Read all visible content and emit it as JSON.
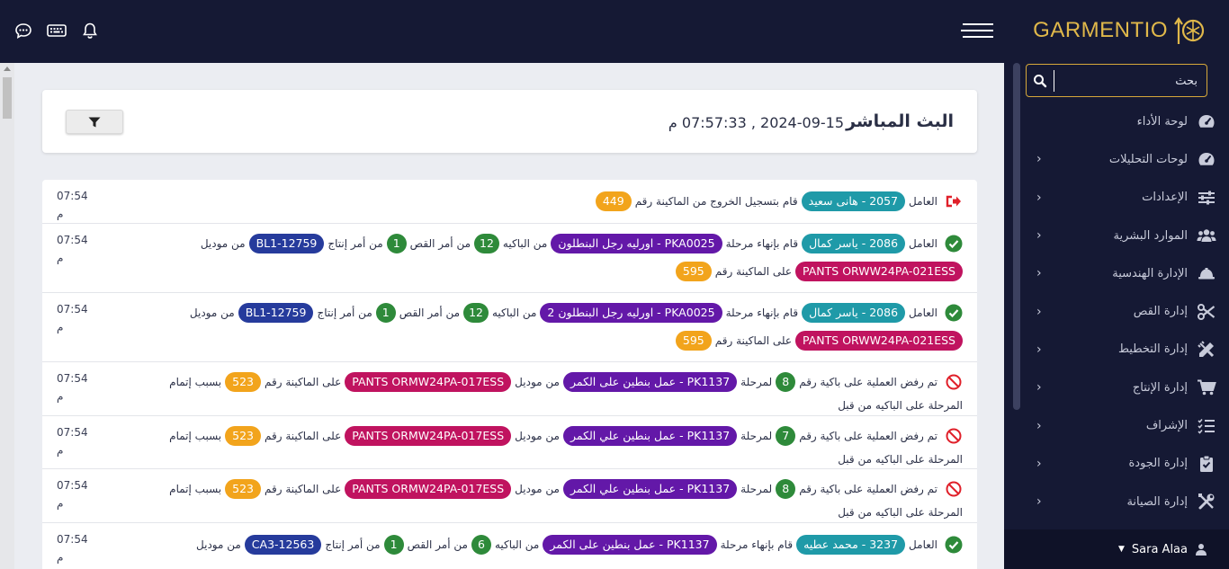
{
  "app": {
    "logo_text": "GARMENTIO"
  },
  "sidebar": {
    "search_placeholder": "بحث",
    "items": [
      {
        "label": "لوحة الأداء",
        "icon": "speedometer-icon",
        "has_children": false
      },
      {
        "label": "لوحات التحليلات",
        "icon": "speedometer-icon",
        "has_children": true
      },
      {
        "label": "الإعدادات",
        "icon": "sliders-icon",
        "has_children": true
      },
      {
        "label": "الموارد البشرية",
        "icon": "users-icon",
        "has_children": true
      },
      {
        "label": "الإدارة الهندسية",
        "icon": "hard-hat-icon",
        "has_children": true
      },
      {
        "label": "إدارة القص",
        "icon": "scissors-icon",
        "has_children": true
      },
      {
        "label": "إدارة التخطيط",
        "icon": "pencil-ruler-icon",
        "has_children": true
      },
      {
        "label": "إدارة الإنتاج",
        "icon": "cart-icon",
        "has_children": true
      },
      {
        "label": "الإشراف",
        "icon": "checklist-icon",
        "has_children": true
      },
      {
        "label": "إدارة الجودة",
        "icon": "clipboard-check-icon",
        "has_children": true
      },
      {
        "label": "إدارة الصيانة",
        "icon": "tools-icon",
        "has_children": true
      }
    ],
    "chevron": "›"
  },
  "user": {
    "name": "Sara Alaa"
  },
  "header": {
    "title": "البث المباشر",
    "datetime": "2024-09-15 , 07:57:33 م"
  },
  "feed": {
    "rows": [
      {
        "ts1": "07:54",
        "ts2": "م",
        "status": "logout",
        "lines": [
          [
            {
              "t": "text",
              "v": "العامل"
            },
            {
              "t": "pill",
              "c": "teal",
              "v": "2057 - هانى سعيد"
            },
            {
              "t": "text",
              "v": "قام بتسجيل الخروج من الماكينة رقم"
            },
            {
              "t": "pill",
              "c": "orange",
              "v": "449"
            }
          ]
        ]
      },
      {
        "ts1": "07:54",
        "ts2": "م",
        "status": "ok",
        "lines": [
          [
            {
              "t": "text",
              "v": "العامل"
            },
            {
              "t": "pill",
              "c": "teal",
              "v": "2086 - ياسر كمال"
            },
            {
              "t": "text",
              "v": "قام بإنهاء مرحلة"
            },
            {
              "t": "pill",
              "c": "purple",
              "v": "PKA0025 - اورليه رجل البنطلون"
            },
            {
              "t": "text",
              "v": "من الباكيه"
            },
            {
              "t": "pill",
              "c": "green",
              "v": "12"
            },
            {
              "t": "text",
              "v": "من أمر القص"
            },
            {
              "t": "pill",
              "c": "green",
              "v": "1"
            },
            {
              "t": "text",
              "v": "من أمر إنتاج"
            },
            {
              "t": "pill",
              "c": "navy",
              "v": "BL1-12759"
            },
            {
              "t": "text",
              "v": "من موديل"
            }
          ],
          [
            {
              "t": "pill",
              "c": "crimson",
              "v": "PANTS ORWW24PA-021ESS"
            },
            {
              "t": "text",
              "v": "على الماكينة رقم"
            },
            {
              "t": "pill",
              "c": "orange",
              "v": "595"
            }
          ]
        ]
      },
      {
        "ts1": "07:54",
        "ts2": "م",
        "status": "ok",
        "lines": [
          [
            {
              "t": "text",
              "v": "العامل"
            },
            {
              "t": "pill",
              "c": "teal",
              "v": "2086 - ياسر كمال"
            },
            {
              "t": "text",
              "v": "قام بإنهاء مرحلة"
            },
            {
              "t": "pill",
              "c": "purple",
              "v": "PKA0025 - اورليه رجل البنطلون 2"
            },
            {
              "t": "text",
              "v": "من الباكيه"
            },
            {
              "t": "pill",
              "c": "green",
              "v": "12"
            },
            {
              "t": "text",
              "v": "من أمر القص"
            },
            {
              "t": "pill",
              "c": "green",
              "v": "1"
            },
            {
              "t": "text",
              "v": "من أمر إنتاج"
            },
            {
              "t": "pill",
              "c": "navy",
              "v": "BL1-12759"
            },
            {
              "t": "text",
              "v": "من موديل"
            }
          ],
          [
            {
              "t": "pill",
              "c": "crimson",
              "v": "PANTS ORWW24PA-021ESS"
            },
            {
              "t": "text",
              "v": "على الماكينة رقم"
            },
            {
              "t": "pill",
              "c": "orange",
              "v": "595"
            }
          ]
        ]
      },
      {
        "ts1": "07:54",
        "ts2": "م",
        "status": "rejected",
        "lines": [
          [
            {
              "t": "text",
              "v": "تم رفض العملية على باكية رقم"
            },
            {
              "t": "pill",
              "c": "green",
              "v": "8"
            },
            {
              "t": "text",
              "v": "لمرحلة"
            },
            {
              "t": "pill",
              "c": "purple",
              "v": "PK1137 - عمل بنطين على الكمر"
            },
            {
              "t": "text",
              "v": "من  موديل"
            },
            {
              "t": "pill",
              "c": "crimson",
              "v": "PANTS ORMW24PA-017ESS"
            },
            {
              "t": "text",
              "v": "على الماكينة رقم"
            },
            {
              "t": "pill",
              "c": "orange",
              "v": "523"
            },
            {
              "t": "text",
              "v": "بسبب إتمام"
            }
          ],
          [
            {
              "t": "text",
              "v": "المرحلة على الباكيه من قبل"
            }
          ]
        ]
      },
      {
        "ts1": "07:54",
        "ts2": "م",
        "status": "rejected",
        "lines": [
          [
            {
              "t": "text",
              "v": "تم رفض العملية على باكية رقم"
            },
            {
              "t": "pill",
              "c": "green",
              "v": "7"
            },
            {
              "t": "text",
              "v": "لمرحلة"
            },
            {
              "t": "pill",
              "c": "purple",
              "v": "PK1137 - عمل بنطين علي الكمر"
            },
            {
              "t": "text",
              "v": "من  موديل"
            },
            {
              "t": "pill",
              "c": "crimson",
              "v": "PANTS ORMW24PA-017ESS"
            },
            {
              "t": "text",
              "v": "على الماكينة رقم"
            },
            {
              "t": "pill",
              "c": "orange",
              "v": "523"
            },
            {
              "t": "text",
              "v": "بسبب إتمام"
            }
          ],
          [
            {
              "t": "text",
              "v": "المرحلة على الباكيه من قبل"
            }
          ]
        ]
      },
      {
        "ts1": "07:54",
        "ts2": "م",
        "status": "rejected",
        "lines": [
          [
            {
              "t": "text",
              "v": "تم رفض العملية على باكية رقم"
            },
            {
              "t": "pill",
              "c": "green",
              "v": "8"
            },
            {
              "t": "text",
              "v": "لمرحلة"
            },
            {
              "t": "pill",
              "c": "purple",
              "v": "PK1137 - عمل بنطين علي الكمر"
            },
            {
              "t": "text",
              "v": "من  موديل"
            },
            {
              "t": "pill",
              "c": "crimson",
              "v": "PANTS ORMW24PA-017ESS"
            },
            {
              "t": "text",
              "v": "على الماكينة رقم"
            },
            {
              "t": "pill",
              "c": "orange",
              "v": "523"
            },
            {
              "t": "text",
              "v": "بسبب إتمام"
            }
          ],
          [
            {
              "t": "text",
              "v": "المرحلة على الباكيه من قبل"
            }
          ]
        ]
      },
      {
        "ts1": "07:54",
        "ts2": "م",
        "status": "ok",
        "lines": [
          [
            {
              "t": "text",
              "v": "العامل"
            },
            {
              "t": "pill",
              "c": "teal",
              "v": "3237 - محمد عطيه"
            },
            {
              "t": "text",
              "v": "قام بإنهاء مرحلة"
            },
            {
              "t": "pill",
              "c": "purple",
              "v": "PK1137 - عمل بنطين على الكمر"
            },
            {
              "t": "text",
              "v": "من الباكيه"
            },
            {
              "t": "pill",
              "c": "green",
              "v": "6"
            },
            {
              "t": "text",
              "v": "من أمر القص"
            },
            {
              "t": "pill",
              "c": "green",
              "v": "1"
            },
            {
              "t": "text",
              "v": "من أمر إنتاج"
            },
            {
              "t": "pill",
              "c": "navy",
              "v": "CA3-12563"
            },
            {
              "t": "text",
              "v": "من موديل"
            }
          ]
        ]
      }
    ]
  },
  "colors": {
    "nav_bg": "#151934",
    "accent": "#e0b84a",
    "teal": "#1f9aa8",
    "purple": "#6318a8",
    "green": "#2e8a3a",
    "navy": "#263b9c",
    "crimson": "#c0135f",
    "orange": "#f2a41c"
  }
}
